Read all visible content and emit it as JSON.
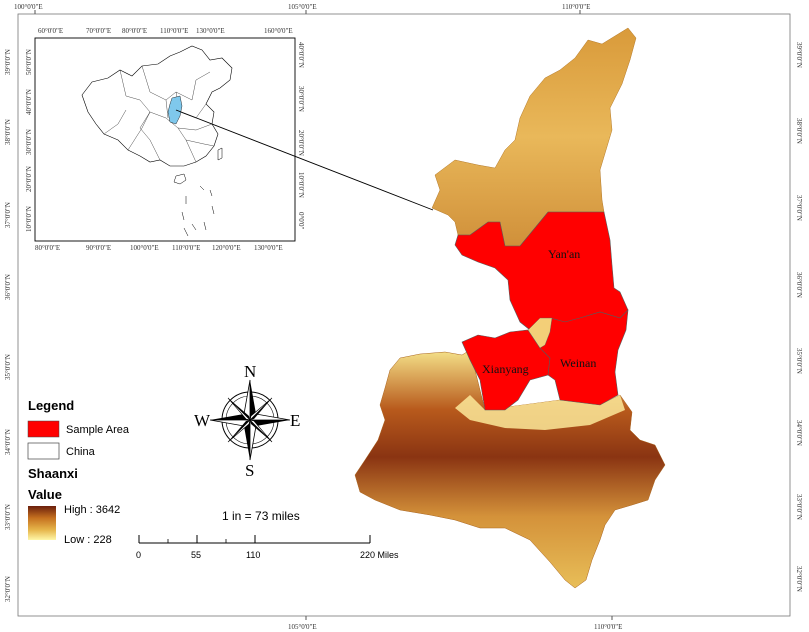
{
  "frame": {
    "top_ticks": [
      "100°0'0\"E",
      "105°0'0\"E",
      "110°0'0\"E"
    ],
    "bottom_ticks": [
      "105°0'0\"E",
      "110°0'0\"E"
    ],
    "left_ticks": [
      "39°0'0\"N",
      "38°0'0\"N",
      "37°0'0\"N",
      "36°0'0\"N",
      "35°0'0\"N",
      "34°0'0\"N",
      "33°0'0\"N",
      "32°0'0\"N"
    ],
    "right_ticks": [
      "39°0'0\"N",
      "38°0'0\"N",
      "37°0'0\"N",
      "36°0'0\"N",
      "35°0'0\"N",
      "34°0'0\"N",
      "33°0'0\"N",
      "32°0'0\"N"
    ]
  },
  "inset": {
    "top_ticks": [
      "60°0'0\"E",
      "70°0'0\"E",
      "80°0'0\"E",
      "110°0'0\"E",
      "130°0'0\"E",
      "160°0'0\"E"
    ],
    "bottom_ticks": [
      "80°0'0\"E",
      "90°0'0\"E",
      "100°0'0\"E",
      "110°0'0\"E",
      "120°0'0\"E",
      "130°0'0\"E"
    ],
    "left_ticks": [
      "50°0'0\"N",
      "40°0'0\"N",
      "30°0'0\"N",
      "20°0'0\"N",
      "10°0'0\"N"
    ],
    "right_ticks": [
      "40°0'0\"N",
      "30°0'0\"N",
      "20°0'0\"N",
      "10°0'0\"N",
      "0°0'0\""
    ]
  },
  "regions": {
    "yanan": "Yan'an",
    "xianyang": "Xianyang",
    "weinan": "Weinan"
  },
  "compass": {
    "n": "N",
    "s": "S",
    "e": "E",
    "w": "W"
  },
  "legend": {
    "title": "Legend",
    "sample_area": "Sample Area",
    "china": "China",
    "shaanxi": "Shaanxi",
    "value": "Value",
    "high": "High : 3642",
    "low": "Low : 228"
  },
  "scale": {
    "ratio": "1 in = 73 miles",
    "labels": [
      "0",
      "55",
      "110",
      "220 Miles"
    ]
  },
  "colors": {
    "sample_area": "#ff0000",
    "inset_highlight": "#7fc8ec",
    "dem_high": "#6b1f0c",
    "dem_low": "#fff7a8"
  }
}
